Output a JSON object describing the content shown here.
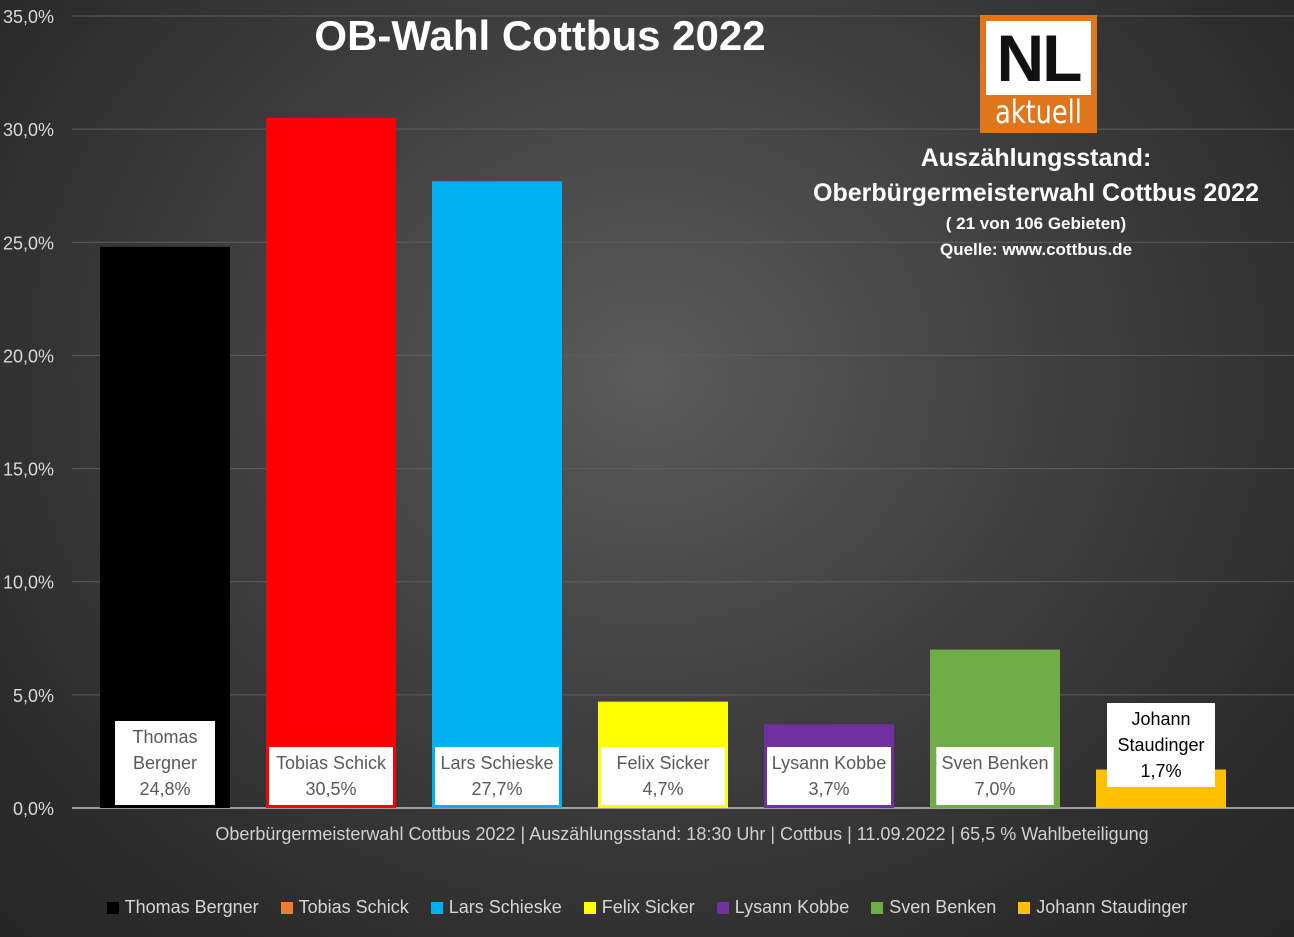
{
  "header": {
    "title": "OB-Wahl Cottbus 2022"
  },
  "logo": {
    "main": "NL",
    "sub": "aktuell",
    "accent_color": "#e0761b"
  },
  "info": {
    "line1": "Auszählungsstand:",
    "line2": "Oberbürgermeisterwahl Cottbus 2022",
    "line3": "( 21 von 106 Gebieten)",
    "line4": "Quelle: www.cottbus.de"
  },
  "footer": {
    "text": "Oberbürgermeisterwahl Cottbus 2022 | Auszählungsstand: 18:30 Uhr | Cottbus | 11.09.2022 | 65,5 % Wahlbeteiligung"
  },
  "chart_data": {
    "type": "bar",
    "title": "OB-Wahl Cottbus 2022",
    "xlabel": "",
    "ylabel": "",
    "ylim": [
      0,
      35
    ],
    "y_ticks": [
      0,
      5,
      10,
      15,
      20,
      25,
      30,
      35
    ],
    "y_tick_labels": [
      "0,0%",
      "5,0%",
      "10,0%",
      "15,0%",
      "20,0%",
      "25,0%",
      "30,0%",
      "35,0%"
    ],
    "grid": true,
    "legend_position": "bottom",
    "categories": [
      "Thomas Bergner",
      "Tobias Schick",
      "Lars Schieske",
      "Felix Sicker",
      "Lysann Kobbe",
      "Sven Benken",
      "Johann Staudinger"
    ],
    "values": [
      24.8,
      30.5,
      27.7,
      4.7,
      3.7,
      7.0,
      1.7
    ],
    "colors": [
      "#000000",
      "#ff0000",
      "#00b0f0",
      "#ffff00",
      "#7030a0",
      "#70ad47",
      "#ffc000"
    ],
    "legend_colors": [
      "#000000",
      "#ed7d31",
      "#00b0f0",
      "#ffff00",
      "#7030a0",
      "#70ad47",
      "#ffc000"
    ],
    "data_labels": [
      {
        "name": [
          "Thomas",
          "Bergner"
        ],
        "value": "24,8%"
      },
      {
        "name": [
          "Tobias Schick"
        ],
        "value": "30,5%"
      },
      {
        "name": [
          "Lars Schieske"
        ],
        "value": "27,7%"
      },
      {
        "name": [
          "Felix Sicker"
        ],
        "value": "4,7%"
      },
      {
        "name": [
          "Lysann Kobbe"
        ],
        "value": "3,7%"
      },
      {
        "name": [
          "Sven Benken"
        ],
        "value": "7,0%"
      },
      {
        "name": [
          "Johann",
          "Staudinger"
        ],
        "value": "1,7%"
      }
    ]
  }
}
